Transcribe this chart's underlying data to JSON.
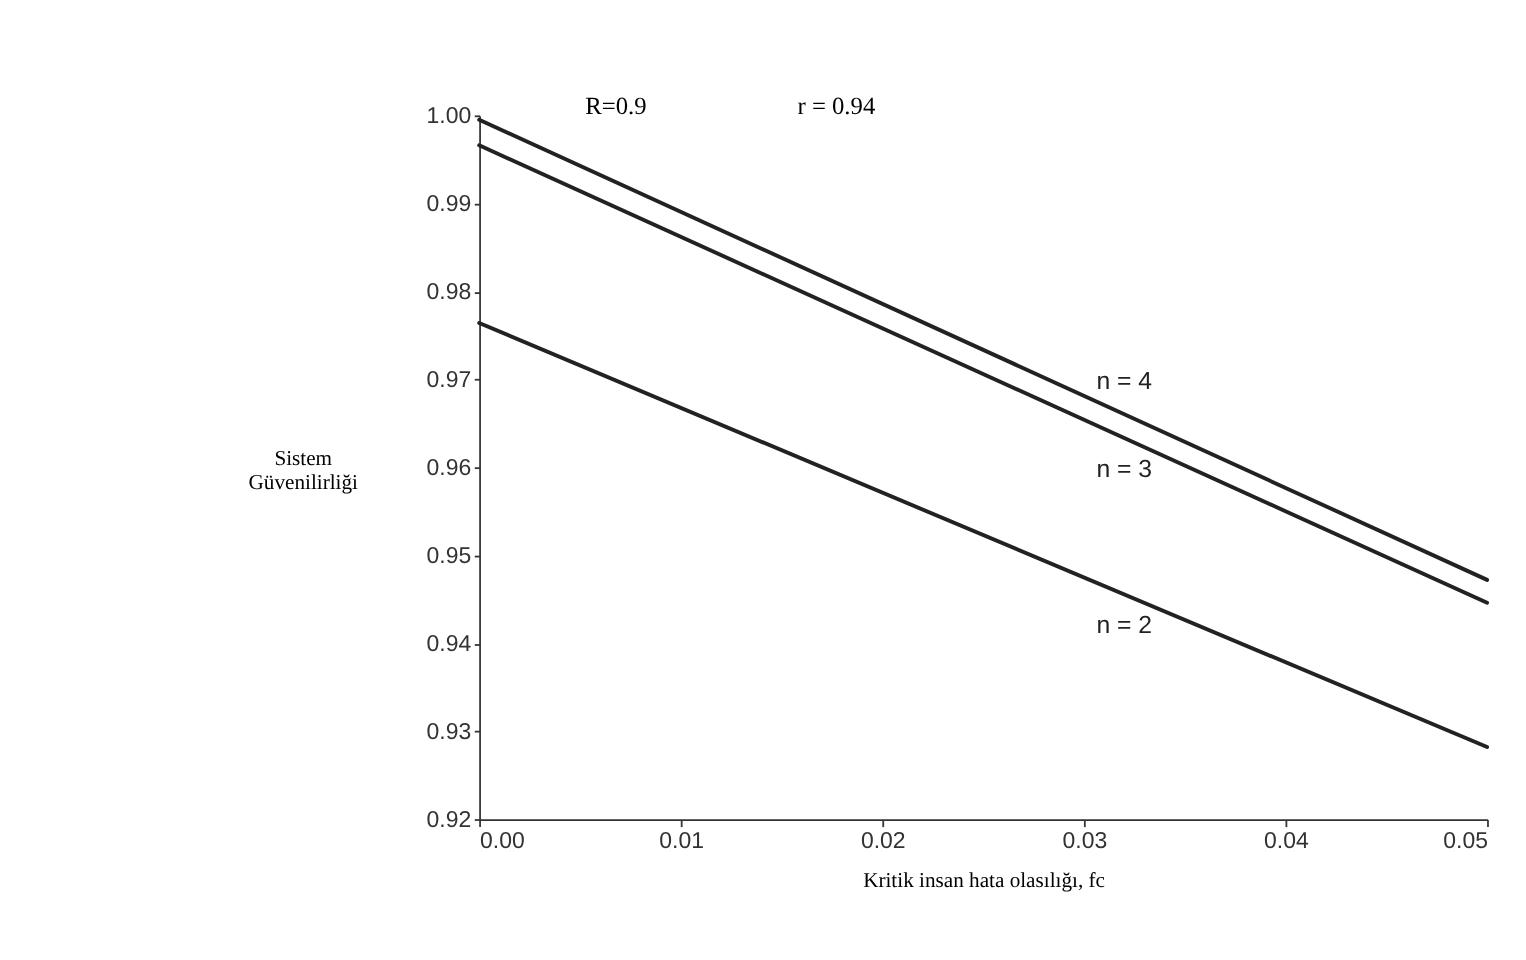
{
  "chart_data": {
    "type": "line",
    "xlabel": "Kritik insan hata olasılığı, fc",
    "ylabel": "Sistem\nGüvenilirliği",
    "annotations": [
      "R=0.9",
      "r = 0.94"
    ],
    "x": [
      0.0,
      0.05
    ],
    "series": [
      {
        "name": "n = 4",
        "color": "#222222",
        "values": [
          0.9995,
          0.9472
        ]
      },
      {
        "name": "n = 3",
        "color": "#222222",
        "values": [
          0.9966,
          0.9446
        ]
      },
      {
        "name": "n = 2",
        "color": "#222222",
        "values": [
          0.9764,
          0.9282
        ]
      }
    ],
    "xlim": [
      0.0,
      0.05
    ],
    "xticks": [
      {
        "value": 0.0,
        "label": "0.00"
      },
      {
        "value": 0.01,
        "label": "0.01"
      },
      {
        "value": 0.02,
        "label": "0.02"
      },
      {
        "value": 0.03,
        "label": "0.03"
      },
      {
        "value": 0.04,
        "label": "0.04"
      },
      {
        "value": 0.05,
        "label": "0.05"
      }
    ],
    "ylim": [
      0.92,
      1.0
    ],
    "yticks": [
      {
        "value": 0.92,
        "label": "0.92"
      },
      {
        "value": 0.93,
        "label": "0.93"
      },
      {
        "value": 0.94,
        "label": "0.94"
      },
      {
        "value": 0.95,
        "label": "0.95"
      },
      {
        "value": 0.96,
        "label": "0.96"
      },
      {
        "value": 0.97,
        "label": "0.97"
      },
      {
        "value": 0.98,
        "label": "0.98"
      },
      {
        "value": 0.99,
        "label": "0.99"
      },
      {
        "value": 1.0,
        "label": "1.00"
      }
    ],
    "grid": false,
    "legend": false,
    "marker": "none",
    "line_style": "solid"
  }
}
